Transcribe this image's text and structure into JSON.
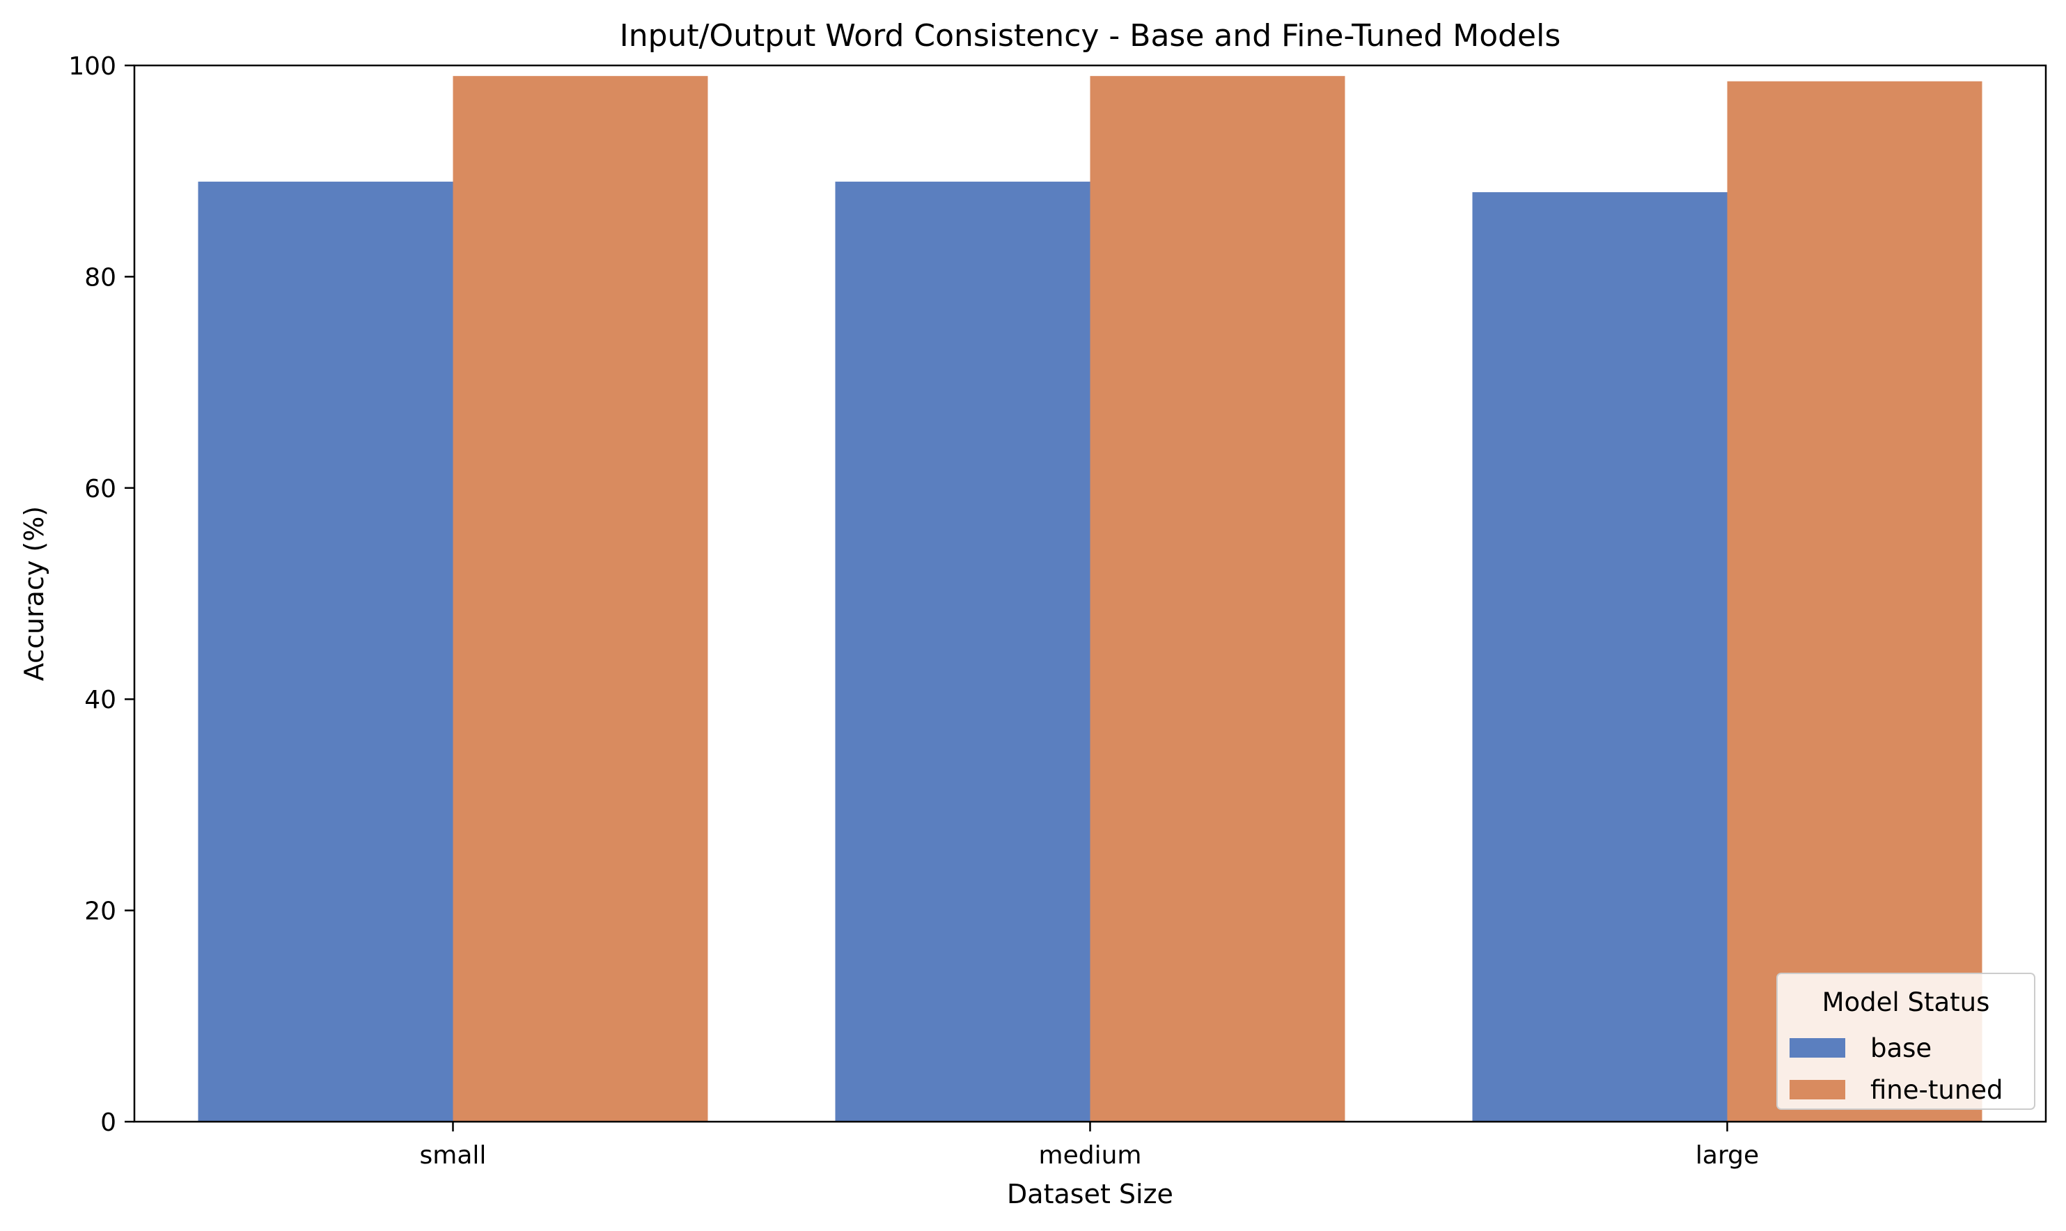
{
  "chart_data": {
    "type": "bar",
    "title": "Input/Output Word Consistency - Base and Fine-Tuned Models",
    "xlabel": "Dataset Size",
    "ylabel": "Accuracy (%)",
    "categories": [
      "small",
      "medium",
      "large"
    ],
    "series": [
      {
        "name": "base",
        "color": "#5b7fbf",
        "values": [
          89.0,
          89.0,
          88.0
        ]
      },
      {
        "name": "fine-tuned",
        "color": "#d98b5f",
        "values": [
          99.0,
          99.0,
          98.5
        ]
      }
    ],
    "ylim": [
      0,
      100
    ],
    "yticks": [
      "0",
      "20",
      "40",
      "60",
      "80",
      "100"
    ],
    "grid": false,
    "legend": {
      "title": "Model Status",
      "placement": "lower-right"
    }
  }
}
